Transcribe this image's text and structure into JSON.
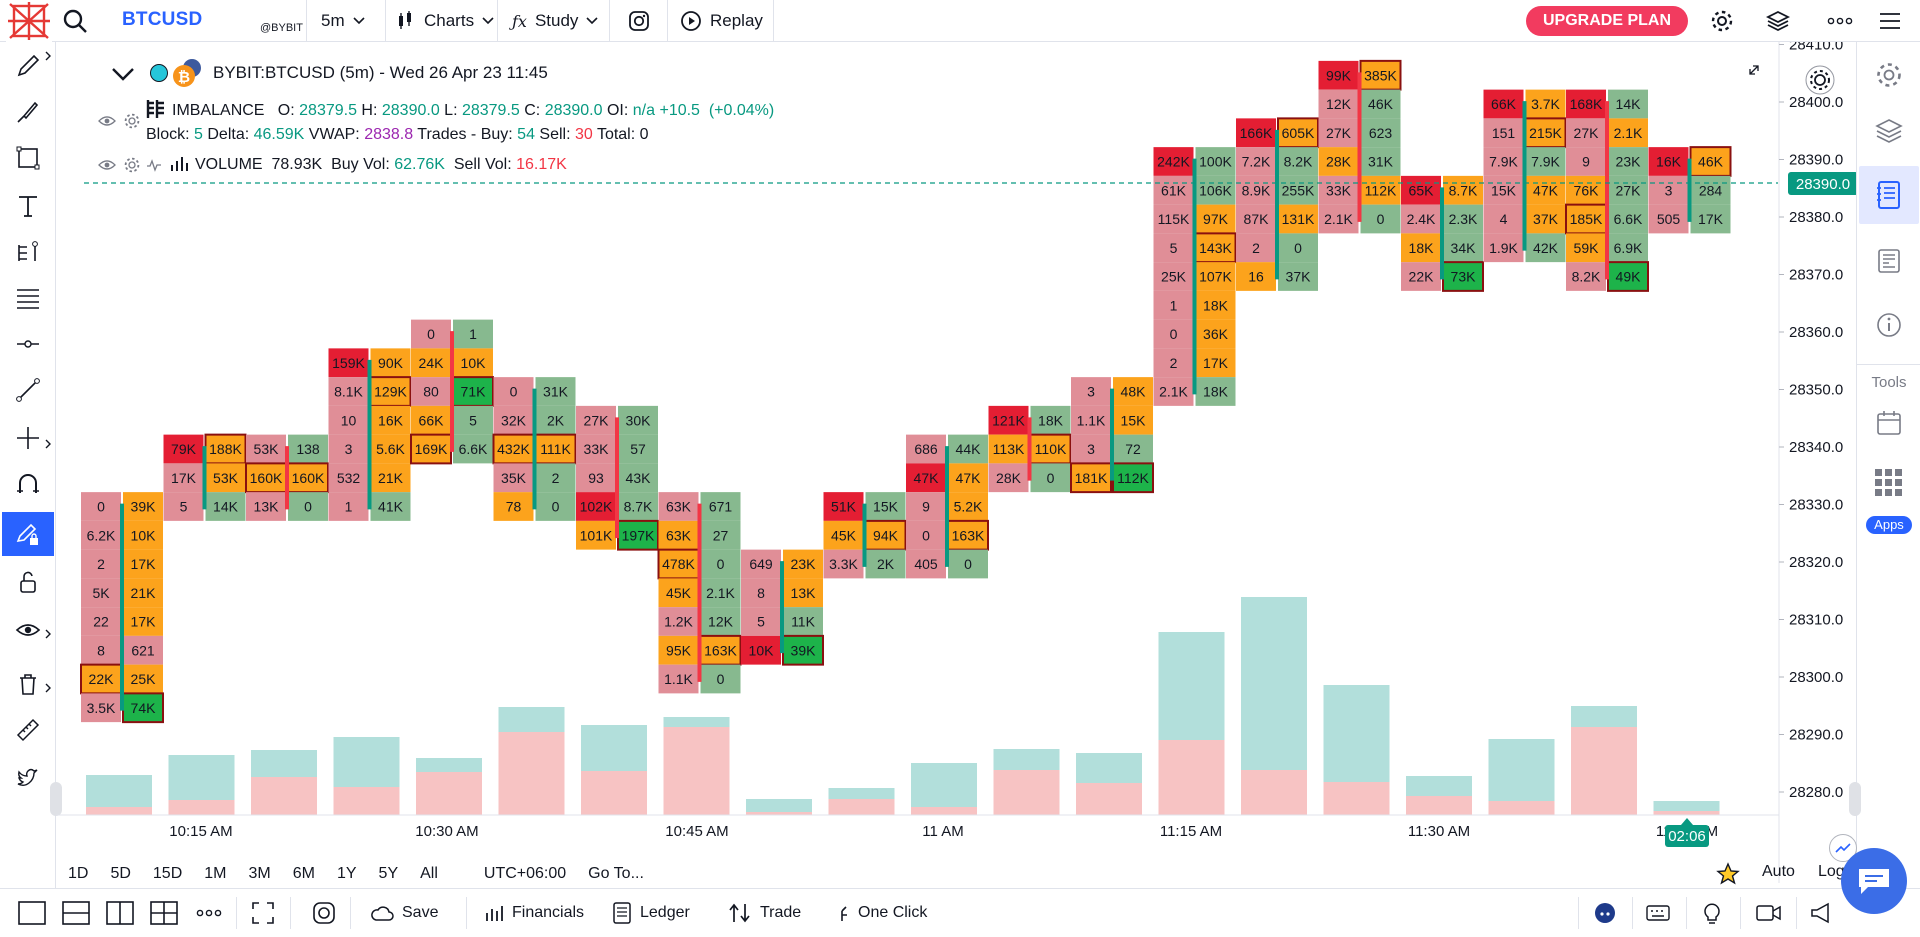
{
  "header": {
    "symbol": "BTCUSD",
    "exchange": "@BYBIT",
    "interval": "5m",
    "charts_label": "Charts",
    "study_label": "Study",
    "replay_label": "Replay",
    "upgrade_label": "UPGRADE PLAN"
  },
  "legend": {
    "title": "BYBIT:BTCUSD (5m) - Wed 26 Apr 23 11:45",
    "imbalance": {
      "name": "IMBALANCE",
      "o": "28379.5",
      "h": "28390.0",
      "l": "28379.5",
      "c": "28390.0",
      "oi": "n/a",
      "chg": "+10.5",
      "pct": "(+0.04%)",
      "block": "5",
      "delta": "46.59K",
      "vwap": "2838.8",
      "buy": "54",
      "sell": "30",
      "total": "0"
    },
    "volume": {
      "name": "VOLUME",
      "vol": "78.93K",
      "buy_vol": "62.76K",
      "sell_vol": "16.17K"
    }
  },
  "price_axis": [
    "28410.0",
    "28400.0",
    "28390.0",
    "28380.0",
    "28370.0",
    "28360.0",
    "28350.0",
    "28340.0",
    "28330.0",
    "28320.0",
    "28310.0",
    "28300.0",
    "28290.0",
    "28280.0"
  ],
  "last_price": "28390.0",
  "time_axis": [
    "10:15 AM",
    "10:30 AM",
    "10:45 AM",
    "11 AM",
    "11:15 AM",
    "11:30 AM",
    "11:45 AM"
  ],
  "countdown": "02:06",
  "ranges": [
    "1D",
    "5D",
    "15D",
    "1M",
    "3M",
    "6M",
    "1Y",
    "5Y",
    "All"
  ],
  "timezone": "UTC+06:00",
  "goto_label": "Go To...",
  "scale_auto": "Auto",
  "scale_log": "Log",
  "right_panel": {
    "tools_label": "Tools",
    "apps_label": "Apps"
  },
  "bottom": {
    "save": "Save",
    "financials": "Financials",
    "ledger": "Ledger",
    "trade": "Trade",
    "one_click": "One Click"
  },
  "colors": {
    "buy": "#089981",
    "sell": "#f23645",
    "accent": "#2962ff",
    "upgrade": "#f23b5f",
    "vol_up": "#b2dfdb",
    "vol_down": "#f7c3c3"
  },
  "footprint": [
    {
      "left": [
        "0",
        "6.2K",
        "2",
        "5K",
        "22",
        "8",
        "22K",
        "3.5K"
      ],
      "lc": [
        "m",
        "m",
        "m",
        "m",
        "m",
        "m",
        "o",
        "m"
      ],
      "lb": [
        0,
        0,
        0,
        0,
        0,
        0,
        1,
        0
      ],
      "right": [
        "39K",
        "10K",
        "17K",
        "21K",
        "17K",
        "621",
        "25K",
        "74K"
      ],
      "rc": [
        "o",
        "o",
        "o",
        "o",
        "o",
        "m",
        "o",
        "G"
      ],
      "rb": [
        0,
        0,
        0,
        0,
        0,
        0,
        0,
        1
      ],
      "top": "28330",
      "dir": "up"
    },
    {
      "left": [
        "79K",
        "17K",
        "5"
      ],
      "lc": [
        "R",
        "m",
        "m"
      ],
      "lb": [
        0,
        0,
        0
      ],
      "right": [
        "188K",
        "53K",
        "14K"
      ],
      "rc": [
        "o",
        "o",
        "g"
      ],
      "rb": [
        1,
        0,
        0
      ],
      "top": "28340",
      "dir": "up"
    },
    {
      "left": [
        "53K",
        "160K",
        "13K"
      ],
      "lc": [
        "m",
        "o",
        "m"
      ],
      "lb": [
        0,
        1,
        0
      ],
      "right": [
        "138",
        "160K",
        "0"
      ],
      "rc": [
        "g",
        "o",
        "g"
      ],
      "rb": [
        0,
        1,
        0
      ],
      "top": "28340",
      "dir": "down"
    },
    {
      "left": [
        "159K",
        "8.1K",
        "10",
        "3",
        "532",
        "1"
      ],
      "lc": [
        "R",
        "m",
        "m",
        "m",
        "m",
        "m"
      ],
      "lb": [
        0,
        0,
        0,
        0,
        0,
        0
      ],
      "right": [
        "90K",
        "129K",
        "16K",
        "5.6K",
        "21K",
        "41K"
      ],
      "rc": [
        "o",
        "o",
        "o",
        "o",
        "o",
        "g"
      ],
      "rb": [
        0,
        1,
        0,
        0,
        0,
        0
      ],
      "top": "28355",
      "dir": "up"
    },
    {
      "left": [
        "0",
        "24K",
        "80",
        "66K",
        "169K"
      ],
      "lc": [
        "m",
        "o",
        "m",
        "o",
        "o"
      ],
      "lb": [
        0,
        0,
        0,
        0,
        1
      ],
      "right": [
        "1",
        "10K",
        "71K",
        "5",
        "6.6K"
      ],
      "rc": [
        "g",
        "o",
        "G",
        "g",
        "g"
      ],
      "rb": [
        0,
        0,
        1,
        0,
        0
      ],
      "top": "28360",
      "dir": "down"
    },
    {
      "left": [
        "0",
        "32K",
        "432K",
        "35K",
        "78"
      ],
      "lc": [
        "m",
        "m",
        "o",
        "m",
        "o"
      ],
      "lb": [
        0,
        0,
        1,
        0,
        0
      ],
      "right": [
        "31K",
        "2K",
        "111K",
        "2",
        "0"
      ],
      "rc": [
        "g",
        "g",
        "o",
        "g",
        "g"
      ],
      "rb": [
        0,
        0,
        1,
        0,
        0
      ],
      "top": "28350",
      "dir": "up"
    },
    {
      "left": [
        "27K",
        "33K",
        "93",
        "102K",
        "101K"
      ],
      "lc": [
        "m",
        "m",
        "m",
        "R",
        "o"
      ],
      "lb": [
        0,
        0,
        0,
        0,
        0
      ],
      "right": [
        "30K",
        "57",
        "43K",
        "8.7K",
        "197K"
      ],
      "rc": [
        "g",
        "g",
        "g",
        "g",
        "G"
      ],
      "rb": [
        0,
        0,
        0,
        0,
        1
      ],
      "top": "28345",
      "dir": "down"
    },
    {
      "left": [
        "63K",
        "63K",
        "478K",
        "45K",
        "1.2K",
        "95K",
        "1.1K"
      ],
      "lc": [
        "m",
        "o",
        "o",
        "o",
        "m",
        "o",
        "m"
      ],
      "lb": [
        0,
        0,
        1,
        0,
        0,
        0,
        0
      ],
      "right": [
        "671",
        "27",
        "0",
        "2.1K",
        "12K",
        "163K",
        "0"
      ],
      "rc": [
        "g",
        "g",
        "g",
        "g",
        "g",
        "o",
        "g"
      ],
      "rb": [
        0,
        0,
        0,
        0,
        0,
        1,
        0
      ],
      "top": "28330",
      "dir": "down"
    },
    {
      "left": [
        "649",
        "8",
        "5",
        "10K"
      ],
      "lc": [
        "m",
        "m",
        "m",
        "R"
      ],
      "lb": [
        0,
        0,
        0,
        0
      ],
      "right": [
        "23K",
        "13K",
        "11K",
        "39K"
      ],
      "rc": [
        "o",
        "o",
        "g",
        "G"
      ],
      "rb": [
        0,
        0,
        0,
        1
      ],
      "top": "28320",
      "dir": "up"
    },
    {
      "left": [
        "51K",
        "45K",
        "3.3K"
      ],
      "lc": [
        "R",
        "o",
        "m"
      ],
      "lb": [
        0,
        0,
        0
      ],
      "right": [
        "15K",
        "94K",
        "2K"
      ],
      "rc": [
        "g",
        "o",
        "g"
      ],
      "rb": [
        0,
        1,
        0
      ],
      "top": "28330",
      "dir": "up"
    },
    {
      "left": [
        "686",
        "47K",
        "9",
        "0",
        "405"
      ],
      "lc": [
        "m",
        "R",
        "m",
        "m",
        "m"
      ],
      "lb": [
        0,
        0,
        0,
        0,
        0
      ],
      "right": [
        "44K",
        "47K",
        "5.2K",
        "163K",
        "0"
      ],
      "rc": [
        "g",
        "o",
        "o",
        "o",
        "g"
      ],
      "rb": [
        0,
        0,
        0,
        1,
        0
      ],
      "top": "28340",
      "dir": "up"
    },
    {
      "left": [
        "121K",
        "113K",
        "28K"
      ],
      "lc": [
        "R",
        "o",
        "m"
      ],
      "lb": [
        0,
        0,
        0
      ],
      "right": [
        "18K",
        "110K",
        "0"
      ],
      "rc": [
        "g",
        "o",
        "g"
      ],
      "rb": [
        0,
        1,
        0
      ],
      "top": "28345",
      "dir": "down"
    },
    {
      "left": [
        "3",
        "1.1K",
        "3",
        "181K"
      ],
      "lc": [
        "m",
        "m",
        "m",
        "o"
      ],
      "lb": [
        0,
        0,
        0,
        1
      ],
      "right": [
        "48K",
        "15K",
        "72",
        "112K"
      ],
      "rc": [
        "o",
        "o",
        "g",
        "G"
      ],
      "rb": [
        0,
        0,
        0,
        1
      ],
      "top": "28350",
      "dir": "up"
    },
    {
      "left": [
        "242K",
        "61K",
        "115K",
        "5",
        "25K",
        "1",
        "0",
        "2",
        "2.1K"
      ],
      "lc": [
        "R",
        "m",
        "m",
        "m",
        "m",
        "m",
        "m",
        "m",
        "m"
      ],
      "lb": [
        0,
        0,
        0,
        0,
        0,
        0,
        0,
        0,
        0
      ],
      "right": [
        "100K",
        "106K",
        "97K",
        "143K",
        "107K",
        "18K",
        "36K",
        "17K",
        "18K"
      ],
      "rc": [
        "g",
        "g",
        "o",
        "o",
        "o",
        "o",
        "o",
        "o",
        "g"
      ],
      "rb": [
        0,
        0,
        0,
        1,
        0,
        0,
        0,
        0,
        0
      ],
      "top": "28390",
      "dir": "up"
    },
    {
      "left": [
        "166K",
        "7.2K",
        "8.9K",
        "87K",
        "2",
        "16"
      ],
      "lc": [
        "R",
        "m",
        "m",
        "m",
        "m",
        "o"
      ],
      "lb": [
        0,
        0,
        0,
        0,
        0,
        0
      ],
      "right": [
        "605K",
        "8.2K",
        "255K",
        "131K",
        "0",
        "37K"
      ],
      "rc": [
        "o",
        "g",
        "g",
        "o",
        "g",
        "g"
      ],
      "rb": [
        1,
        0,
        0,
        0,
        0,
        0
      ],
      "top": "28395",
      "dir": "up"
    },
    {
      "left": [
        "99K",
        "12K",
        "27K",
        "28K",
        "33K",
        "2.1K"
      ],
      "lc": [
        "R",
        "m",
        "m",
        "o",
        "m",
        "m"
      ],
      "lb": [
        0,
        0,
        0,
        0,
        0,
        0
      ],
      "right": [
        "385K",
        "46K",
        "623",
        "31K",
        "112K",
        "0"
      ],
      "rc": [
        "o",
        "g",
        "g",
        "g",
        "o",
        "g"
      ],
      "rb": [
        1,
        0,
        0,
        0,
        0,
        0
      ],
      "top": "28405",
      "dir": "down"
    },
    {
      "left": [
        "65K",
        "2.4K",
        "18K",
        "22K"
      ],
      "lc": [
        "R",
        "m",
        "o",
        "m"
      ],
      "lb": [
        0,
        0,
        0,
        0
      ],
      "right": [
        "8.7K",
        "2.3K",
        "34K",
        "73K"
      ],
      "rc": [
        "o",
        "g",
        "g",
        "G"
      ],
      "rb": [
        0,
        0,
        0,
        1
      ],
      "top": "28385",
      "dir": "up"
    },
    {
      "left": [
        "66K",
        "151",
        "7.9K",
        "15K",
        "4",
        "1.9K"
      ],
      "lc": [
        "R",
        "m",
        "m",
        "m",
        "m",
        "m"
      ],
      "lb": [
        0,
        0,
        0,
        0,
        0,
        0
      ],
      "right": [
        "3.7K",
        "215K",
        "7.9K",
        "47K",
        "37K",
        "42K"
      ],
      "rc": [
        "o",
        "o",
        "g",
        "o",
        "o",
        "g"
      ],
      "rb": [
        0,
        1,
        0,
        0,
        0,
        0
      ],
      "top": "28400",
      "dir": "up"
    },
    {
      "left": [
        "168K",
        "27K",
        "9",
        "76K",
        "185K",
        "59K",
        "8.2K"
      ],
      "lc": [
        "R",
        "m",
        "m",
        "o",
        "o",
        "o",
        "m"
      ],
      "lb": [
        0,
        0,
        0,
        0,
        1,
        0,
        0
      ],
      "right": [
        "14K",
        "2.1K",
        "23K",
        "27K",
        "6.6K",
        "6.9K",
        "49K"
      ],
      "rc": [
        "g",
        "o",
        "g",
        "g",
        "g",
        "g",
        "G"
      ],
      "rb": [
        0,
        0,
        0,
        0,
        0,
        0,
        1
      ],
      "top": "28400",
      "dir": "down"
    },
    {
      "left": [
        "16K",
        "3",
        "505"
      ],
      "lc": [
        "R",
        "m",
        "m"
      ],
      "lb": [
        0,
        0,
        0
      ],
      "right": [
        "46K",
        "284",
        "17K"
      ],
      "rc": [
        "o",
        "g",
        "g"
      ],
      "rb": [
        1,
        0,
        0
      ],
      "top": "28390",
      "dir": "up"
    }
  ],
  "volume_bars": [
    {
      "total": "40",
      "sell": "8"
    },
    {
      "total": "60",
      "sell": "15"
    },
    {
      "total": "65",
      "sell": "38"
    },
    {
      "total": "78",
      "sell": "28"
    },
    {
      "total": "57",
      "sell": "43"
    },
    {
      "total": "108",
      "sell": "83"
    },
    {
      "total": "90",
      "sell": "44"
    },
    {
      "total": "98",
      "sell": "88"
    },
    {
      "total": "16",
      "sell": "3"
    },
    {
      "total": "27",
      "sell": "16"
    },
    {
      "total": "52",
      "sell": "8"
    },
    {
      "total": "66",
      "sell": "45"
    },
    {
      "total": "62",
      "sell": "32"
    },
    {
      "total": "183",
      "sell": "75"
    },
    {
      "total": "218",
      "sell": "45"
    },
    {
      "total": "130",
      "sell": "33"
    },
    {
      "total": "39",
      "sell": "19"
    },
    {
      "total": "76",
      "sell": "14"
    },
    {
      "total": "109",
      "sell": "88"
    },
    {
      "total": "14",
      "sell": "4"
    }
  ]
}
